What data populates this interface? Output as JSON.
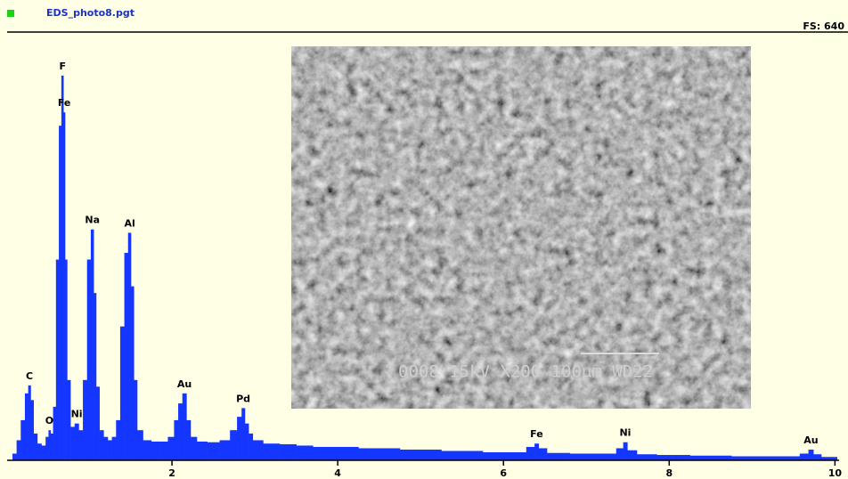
{
  "chart_data": {
    "type": "spectrum",
    "title": "EDS_photo8.pgt",
    "full_scale_label": "FS: 640",
    "color": "#1436ff",
    "xlim": [
      0,
      10.05
    ],
    "ylim": [
      0,
      640
    ],
    "xticks": [
      2,
      4,
      6,
      8,
      10
    ],
    "x": [
      0.1,
      0.15,
      0.2,
      0.25,
      0.28,
      0.31,
      0.35,
      0.4,
      0.45,
      0.5,
      0.52,
      0.55,
      0.58,
      0.62,
      0.65,
      0.68,
      0.7,
      0.72,
      0.75,
      0.8,
      0.85,
      0.9,
      0.95,
      1.0,
      1.04,
      1.07,
      1.1,
      1.15,
      1.2,
      1.25,
      1.3,
      1.35,
      1.4,
      1.45,
      1.49,
      1.52,
      1.56,
      1.6,
      1.7,
      1.8,
      1.9,
      2.0,
      2.05,
      2.1,
      2.15,
      2.2,
      2.25,
      2.35,
      2.5,
      2.65,
      2.75,
      2.82,
      2.86,
      2.9,
      2.95,
      3.0,
      3.2,
      3.4,
      3.6,
      3.8,
      4.0,
      4.5,
      5.0,
      5.5,
      6.0,
      6.2,
      6.35,
      6.4,
      6.45,
      6.6,
      7.0,
      7.3,
      7.42,
      7.47,
      7.52,
      7.7,
      8.0,
      8.5,
      9.0,
      9.5,
      9.65,
      9.71,
      9.77,
      9.9,
      10.0
    ],
    "values": [
      10,
      30,
      60,
      100,
      112,
      90,
      40,
      25,
      22,
      35,
      45,
      40,
      80,
      300,
      500,
      575,
      520,
      300,
      120,
      50,
      55,
      45,
      120,
      300,
      345,
      250,
      110,
      45,
      35,
      30,
      35,
      60,
      200,
      310,
      340,
      260,
      120,
      45,
      30,
      28,
      28,
      35,
      60,
      85,
      100,
      60,
      35,
      28,
      27,
      30,
      45,
      65,
      78,
      55,
      40,
      30,
      25,
      24,
      22,
      20,
      20,
      18,
      16,
      14,
      12,
      12,
      20,
      25,
      18,
      11,
      10,
      10,
      18,
      27,
      15,
      9,
      8,
      7,
      6,
      6,
      10,
      16,
      9,
      5,
      5
    ],
    "annotations": [
      {
        "label": "C",
        "x": 0.28
      },
      {
        "label": "O",
        "x": 0.52
      },
      {
        "label": "F",
        "x": 0.68
      },
      {
        "label": "Fe",
        "x": 0.7
      },
      {
        "label": "Ni",
        "x": 0.85
      },
      {
        "label": "Na",
        "x": 1.04
      },
      {
        "label": "Al",
        "x": 1.49
      },
      {
        "label": "Au",
        "x": 2.15
      },
      {
        "label": "Pd",
        "x": 2.86
      },
      {
        "label": "Fe",
        "x": 6.4
      },
      {
        "label": "Ni",
        "x": 7.47
      },
      {
        "label": "Au",
        "x": 9.71
      }
    ],
    "inset_caption": "0008  15kV   X200  100μm  WD22"
  }
}
